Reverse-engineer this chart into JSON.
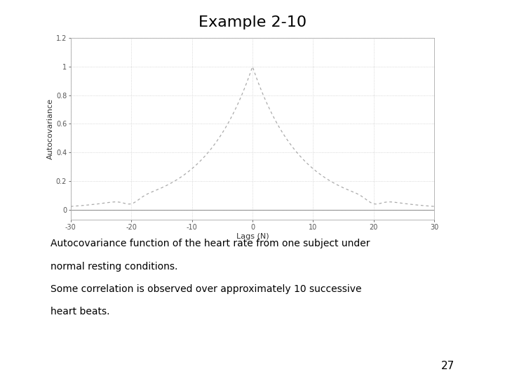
{
  "title": "Example 2-10",
  "xlabel": "Lags (N)",
  "ylabel": "Autocovariance",
  "xlim": [
    -30,
    30
  ],
  "ylim": [
    -0.07,
    1.2
  ],
  "yticks": [
    0,
    0.2,
    0.4,
    0.6,
    0.8,
    1.0,
    1.2
  ],
  "ytick_labels": [
    "0",
    "0.2",
    "0.4",
    "0.6",
    "0.8",
    "1",
    "1.2"
  ],
  "xticks": [
    -30,
    -20,
    -10,
    0,
    10,
    20,
    30
  ],
  "xtick_labels": [
    "-30",
    "-20",
    "-10",
    "0",
    "10",
    "20",
    "30"
  ],
  "line_color": "#aaaaaa",
  "caption_line1": "Autocovariance function of the heart rate from one subject under normal resting conditions.",
  "caption_line2": "Some correlation is observed over approximately 10 successive heart beats.",
  "page_number": "27",
  "fig_width": 7.2,
  "fig_height": 5.4,
  "dpi": 100,
  "title_fontsize": 16,
  "axis_label_fontsize": 8,
  "tick_fontsize": 7,
  "caption_fontsize": 10,
  "page_num_fontsize": 11,
  "grid_color": "#cccccc",
  "grid_style": ":",
  "background_color": "#ffffff"
}
